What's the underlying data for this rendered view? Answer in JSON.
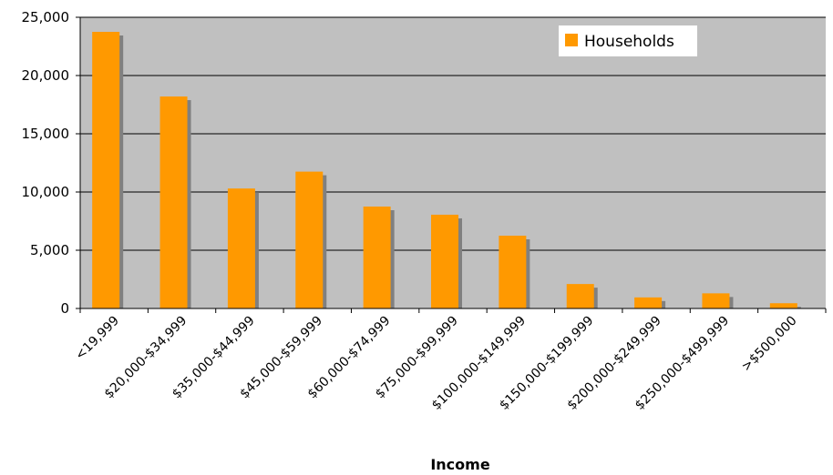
{
  "chart_data": {
    "type": "bar",
    "title": "",
    "xlabel": "Income",
    "ylabel": "",
    "ylim": [
      0,
      25000
    ],
    "yticks": [
      0,
      5000,
      10000,
      15000,
      20000,
      25000
    ],
    "ytick_labels": [
      "0",
      "5,000",
      "10,000",
      "15,000",
      "20,000",
      "25,000"
    ],
    "grid": true,
    "legend_position": "top-right",
    "categories": [
      "<19,999",
      "$20,000-$34,999",
      "$35,000-$44,999",
      "$45,000-$59,999",
      "$60,000-$74,999",
      "$75,000-$99,999",
      "$100,000-$149,999",
      "$150,000-$199,999",
      "$200,000-$249,999",
      "$250,000-$499,999",
      ">$500,000"
    ],
    "series": [
      {
        "name": "Households",
        "values": [
          23750,
          18200,
          10300,
          11750,
          8750,
          8050,
          6250,
          2100,
          950,
          1300,
          450
        ]
      }
    ],
    "colors": {
      "bar": "#FF9900",
      "bar_shadow": "#808080",
      "plot_background": "#C0C0C0",
      "gridline": "#000000"
    }
  }
}
